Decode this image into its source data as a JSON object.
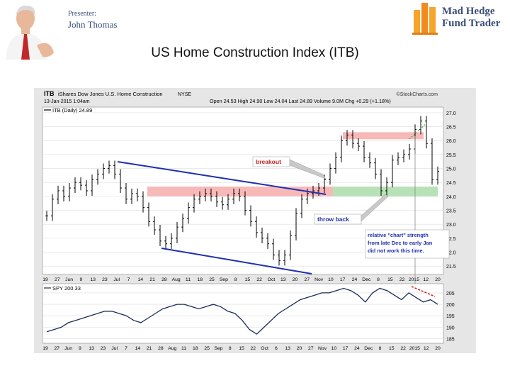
{
  "slide": {
    "presenter_role": "Presenter:",
    "presenter_name": "John Thomas",
    "logo_line1": "Mad Hedge",
    "logo_line2": "Fund Trader",
    "title": "US Home Construction Index (ITB)"
  },
  "chart_data": {
    "type": "bar",
    "symbol": "ITB",
    "full_name": "iShares Dow Jones U.S. Home Construction",
    "exchange": "NYSE",
    "date_line": "13-Jan-2015 1:04am",
    "stats": "Open 24.53  High 24.90  Low 24.04  Last 24.89  Volume 9.0M  Chg +0.29 (+1.18%)",
    "legend_main": "ITB (Daily) 24.89",
    "source": "©StockCharts.com",
    "ylim": [
      21.2,
      27.2
    ],
    "y_ticks": [
      "27.0",
      "26.5",
      "26.0",
      "25.5",
      "25.0",
      "24.5",
      "24.0",
      "23.5",
      "23.0",
      "22.5",
      "22.0",
      "21.5"
    ],
    "y_tick_values": [
      27.0,
      26.5,
      26.0,
      25.5,
      25.0,
      24.5,
      24.0,
      23.5,
      23.0,
      22.5,
      22.0,
      21.5
    ],
    "x_ticks": [
      "19",
      "27",
      "Jun",
      "9",
      "13",
      "23",
      "Jul",
      "7",
      "14",
      "21",
      "28",
      "Aug",
      "11",
      "18",
      "25",
      "Sep",
      "8",
      "15",
      "22",
      "Oct",
      "13",
      "20",
      "27",
      "Nov",
      "10",
      "17",
      "24",
      "Dec",
      "8",
      "15",
      "22",
      "2015",
      "12",
      "20"
    ],
    "x_ticks_bottom": [
      "19",
      "27",
      "Jun",
      "9",
      "13",
      "23",
      "Jul",
      "7",
      "14",
      "21",
      "28",
      "Aug",
      "11",
      "18",
      "25",
      "Sep",
      "8",
      "15",
      "22",
      "Oct",
      "6",
      "13",
      "20",
      "27",
      "Nov",
      "10",
      "17",
      "24",
      "Dec",
      "8",
      "15",
      "22",
      "2015",
      "12",
      "20"
    ],
    "closes": [
      23.3,
      23.9,
      24.2,
      24.0,
      24.3,
      24.5,
      24.4,
      24.2,
      24.6,
      24.8,
      25.0,
      25.1,
      24.8,
      24.3,
      23.9,
      24.1,
      24.0,
      23.6,
      23.1,
      22.8,
      22.4,
      22.3,
      22.5,
      22.9,
      23.2,
      23.6,
      23.9,
      24.0,
      24.1,
      24.0,
      23.8,
      23.7,
      23.9,
      24.1,
      24.0,
      23.5,
      23.1,
      22.7,
      22.5,
      22.3,
      21.9,
      21.7,
      21.9,
      22.6,
      23.4,
      23.9,
      24.1,
      24.2,
      24.3,
      24.6,
      25.0,
      25.4,
      26.0,
      26.2,
      25.9,
      25.8,
      25.4,
      25.2,
      24.8,
      24.2,
      24.5,
      25.3,
      25.4,
      25.5,
      25.7,
      26.4,
      26.7,
      25.9,
      24.6,
      24.89
    ],
    "resistance_zone": [
      26.05,
      26.3
    ],
    "support_zone": [
      24.0,
      24.35
    ],
    "annotations": {
      "breakout": "breakout",
      "throw_back": "throw back",
      "note": [
        "relative \"chart\" strength",
        "from late Dec to early Jan",
        "did not work this time."
      ]
    },
    "spy": {
      "legend": "SPY 200.33",
      "ylim": [
        183,
        209
      ],
      "y_ticks": [
        "205",
        "200",
        "195",
        "190",
        "185"
      ],
      "y_tick_values": [
        205,
        200,
        195,
        190,
        185
      ],
      "values": [
        188,
        189,
        190,
        192,
        193,
        194,
        195,
        196,
        197,
        197,
        196,
        195,
        193,
        192,
        194,
        196,
        198,
        199,
        200,
        200,
        199,
        198,
        199,
        200,
        199,
        197,
        196,
        193,
        189,
        187,
        190,
        193,
        196,
        198,
        200,
        202,
        203,
        204,
        205,
        205,
        206,
        207,
        206,
        204,
        201,
        205,
        207,
        206,
        204,
        202,
        205,
        203,
        201,
        202,
        200
      ]
    }
  }
}
